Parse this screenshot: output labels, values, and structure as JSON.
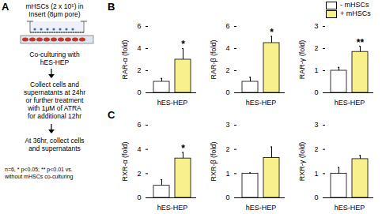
{
  "protocol": {
    "heading": [
      "mHSCs (2 x 10⁵) in",
      "Insert (8μm pore)"
    ],
    "steps": [
      [
        "Co-culturing with",
        "hES-HEP"
      ],
      [
        "Collect cells and",
        "supernatants at 24hr",
        "or further treatment",
        "with 1μM of ATRA",
        "for additional 12hr"
      ],
      [
        "At 36hr, collect cells",
        "and supernatants"
      ]
    ],
    "footnote": [
      "n=6, * p<0.05; ** p<0.01 vs.",
      "without mHSCs co-culturing"
    ],
    "label": "A"
  },
  "chart_data": [
    {
      "type": "bar",
      "panel": "B",
      "y_label": "RAR-α (fold)",
      "categories": [
        "hES-HEP"
      ],
      "ylim": [
        0,
        6
      ],
      "yticks": [
        0,
        2,
        4,
        6
      ],
      "series": [
        {
          "name": "- mHSCs",
          "color": "#ffffff",
          "values": [
            1.0
          ],
          "errors": [
            0.3
          ]
        },
        {
          "name": "+ mHSCs",
          "color": "#f8f08c",
          "values": [
            3.0
          ],
          "errors": [
            1.0
          ],
          "annotations": [
            "*"
          ]
        }
      ]
    },
    {
      "type": "bar",
      "panel": "B",
      "y_label": "RAR-β (fold)",
      "categories": [
        "hES-HEP"
      ],
      "ylim": [
        0,
        6
      ],
      "yticks": [
        0,
        2,
        4,
        6
      ],
      "series": [
        {
          "name": "- mHSCs",
          "color": "#ffffff",
          "values": [
            1.0
          ],
          "errors": [
            0.4
          ]
        },
        {
          "name": "+ mHSCs",
          "color": "#f8f08c",
          "values": [
            4.5
          ],
          "errors": [
            0.6
          ],
          "annotations": [
            "*"
          ]
        }
      ]
    },
    {
      "type": "bar",
      "panel": "B",
      "y_label": "RAR-γ (fold)",
      "categories": [
        "hES-HEP"
      ],
      "ylim": [
        0,
        3
      ],
      "yticks": [
        0,
        1,
        2,
        3
      ],
      "series": [
        {
          "name": "- mHSCs",
          "color": "#ffffff",
          "values": [
            1.0
          ],
          "errors": [
            0.15
          ]
        },
        {
          "name": "+ mHSCs",
          "color": "#f8f08c",
          "values": [
            1.85
          ],
          "errors": [
            0.25
          ],
          "annotations": [
            "**"
          ]
        }
      ]
    },
    {
      "type": "bar",
      "panel": "C",
      "y_label": "RXR-α (fold)",
      "categories": [
        "hES-HEP"
      ],
      "ylim": [
        0,
        6
      ],
      "yticks": [
        0,
        2,
        4,
        6
      ],
      "series": [
        {
          "name": "- mHSCs",
          "color": "#ffffff",
          "values": [
            1.0
          ],
          "errors": [
            0.5
          ]
        },
        {
          "name": "+ mHSCs",
          "color": "#f8f08c",
          "values": [
            3.25
          ],
          "errors": [
            0.5
          ],
          "annotations": [
            "*"
          ]
        }
      ]
    },
    {
      "type": "bar",
      "panel": "C",
      "y_label": "RXR-β (fold)",
      "categories": [
        "hES-HEP"
      ],
      "ylim": [
        0,
        3
      ],
      "yticks": [
        0,
        1,
        2,
        3
      ],
      "series": [
        {
          "name": "- mHSCs",
          "color": "#ffffff",
          "values": [
            1.0
          ],
          "errors": [
            0.03
          ]
        },
        {
          "name": "+ mHSCs",
          "color": "#f8f08c",
          "values": [
            1.65
          ],
          "errors": [
            0.45
          ]
        }
      ]
    },
    {
      "type": "bar",
      "panel": "C",
      "y_label": "RXR-γ (fold)",
      "categories": [
        "hES-HEP"
      ],
      "ylim": [
        0,
        3
      ],
      "yticks": [
        0,
        1,
        2,
        3
      ],
      "series": [
        {
          "name": "- mHSCs",
          "color": "#ffffff",
          "values": [
            1.0
          ],
          "errors": [
            0.25
          ]
        },
        {
          "name": "+ mHSCs",
          "color": "#f8f08c",
          "values": [
            1.6
          ],
          "errors": [
            0.15
          ]
        }
      ]
    }
  ]
}
